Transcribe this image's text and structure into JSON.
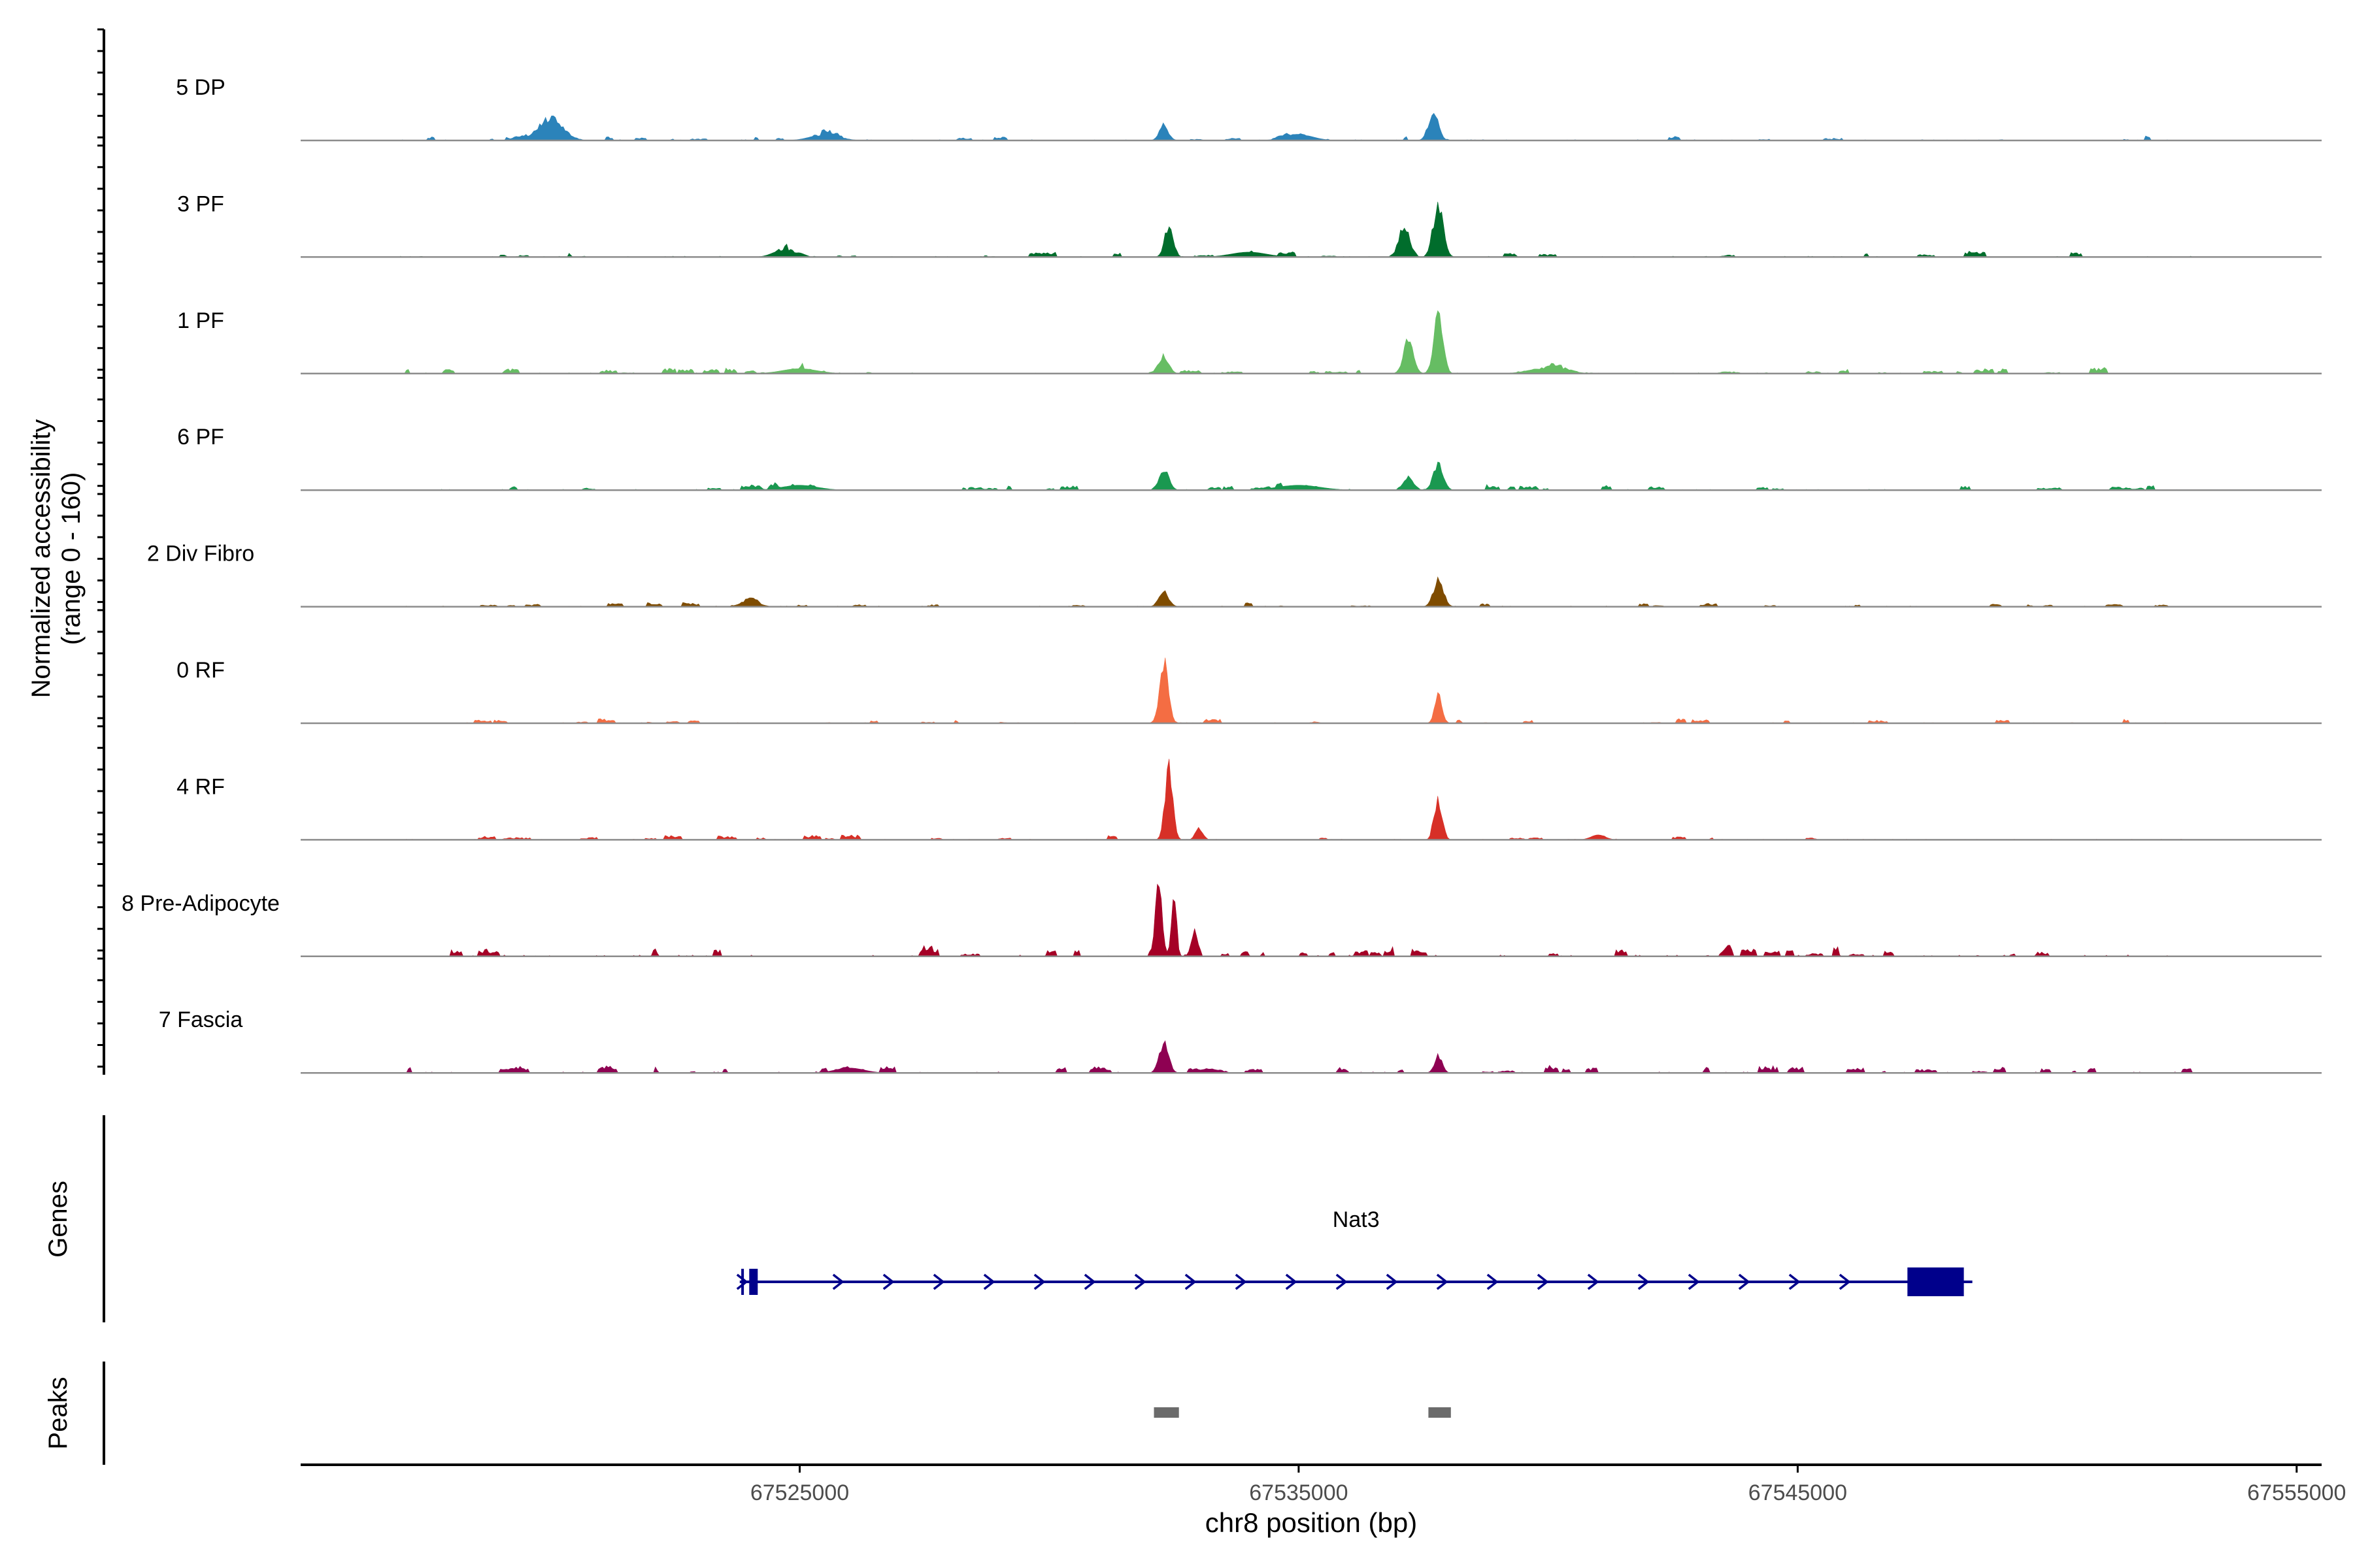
{
  "chart_data": {
    "type": "coverage",
    "chromosome": "chr8",
    "xlabel": "chr8 position (bp)",
    "xlim": [
      67515000,
      67555500
    ],
    "xticks": [
      67525000,
      67535000,
      67545000,
      67555000
    ],
    "xtick_labels": [
      "67525000",
      "67535000",
      "67545000",
      "67555000"
    ],
    "ylabel_line1": "Normalized accessibility",
    "ylabel_line2": "(range 0 - 160)",
    "yrange": [
      0,
      160
    ],
    "tracks": [
      {
        "name": "5 DP",
        "color": "#2b83ba",
        "dots": 0.06,
        "peaks": [
          [
            67520000,
            0.22,
            350
          ],
          [
            67537700,
            0.28,
            140
          ],
          [
            67532300,
            0.14,
            130
          ],
          [
            67525500,
            0.06,
            400
          ],
          [
            67535000,
            0.06,
            400
          ]
        ]
      },
      {
        "name": "3 PF",
        "color": "#006d2c",
        "dots": 0.06,
        "peaks": [
          [
            67532400,
            0.32,
            120
          ],
          [
            67537100,
            0.28,
            140
          ],
          [
            67537800,
            0.5,
            140
          ],
          [
            67524700,
            0.08,
            300
          ],
          [
            67534000,
            0.05,
            500
          ]
        ]
      },
      {
        "name": "1 PF",
        "color": "#66bd63",
        "dots": 0.06,
        "peaks": [
          [
            67532300,
            0.16,
            140
          ],
          [
            67537200,
            0.33,
            140
          ],
          [
            67537800,
            0.55,
            130
          ],
          [
            67525000,
            0.05,
            500
          ],
          [
            67540000,
            0.06,
            500
          ]
        ]
      },
      {
        "name": "6 PF",
        "color": "#1a9850",
        "dots": 0.06,
        "peaks": [
          [
            67532300,
            0.2,
            140
          ],
          [
            67537200,
            0.14,
            140
          ],
          [
            67537800,
            0.26,
            140
          ],
          [
            67525000,
            0.05,
            500
          ],
          [
            67535000,
            0.05,
            600
          ]
        ]
      },
      {
        "name": "2 Div Fibro",
        "color": "#7f4c00",
        "dots": 0.05,
        "peaks": [
          [
            67532300,
            0.14,
            140
          ],
          [
            67537800,
            0.27,
            140
          ],
          [
            67524000,
            0.06,
            250
          ]
        ]
      },
      {
        "name": "0 RF",
        "color": "#f46d43",
        "dots": 0.05,
        "peaks": [
          [
            67532300,
            0.65,
            120
          ],
          [
            67537800,
            0.3,
            100
          ]
        ]
      },
      {
        "name": "4 RF",
        "color": "#d73027",
        "dots": 0.05,
        "peaks": [
          [
            67532400,
            0.72,
            110
          ],
          [
            67533000,
            0.12,
            100
          ],
          [
            67537800,
            0.4,
            110
          ],
          [
            67541000,
            0.05,
            200
          ]
        ]
      },
      {
        "name": "8 Pre-Adipocyte",
        "color": "#a50026",
        "dots": 0.1,
        "peaks": [
          [
            67532200,
            0.82,
            90
          ],
          [
            67532500,
            0.68,
            70
          ],
          [
            67532900,
            0.2,
            90
          ],
          [
            67522100,
            0.08,
            50
          ],
          [
            67543600,
            0.08,
            80
          ]
        ]
      },
      {
        "name": "7 Fascia",
        "color": "#8e0152",
        "dots": 0.07,
        "peaks": [
          [
            67532300,
            0.3,
            130
          ],
          [
            67537800,
            0.17,
            110
          ],
          [
            67526000,
            0.05,
            400
          ],
          [
            67533200,
            0.04,
            300
          ]
        ]
      }
    ],
    "genes_label": "Genes",
    "peaks_label": "Peaks",
    "gene": {
      "name": "Nat3",
      "start": 67523800,
      "end": 67548500,
      "strand": "+",
      "color": "#00008b",
      "exons": [
        [
          67523830,
          67523880
        ],
        [
          67523990,
          67524160
        ],
        [
          67547200,
          67548330
        ]
      ]
    },
    "peak_regions": [
      [
        67532100,
        67532600
      ],
      [
        67537600,
        67538050
      ]
    ],
    "peak_color": "#6b6b6b"
  }
}
